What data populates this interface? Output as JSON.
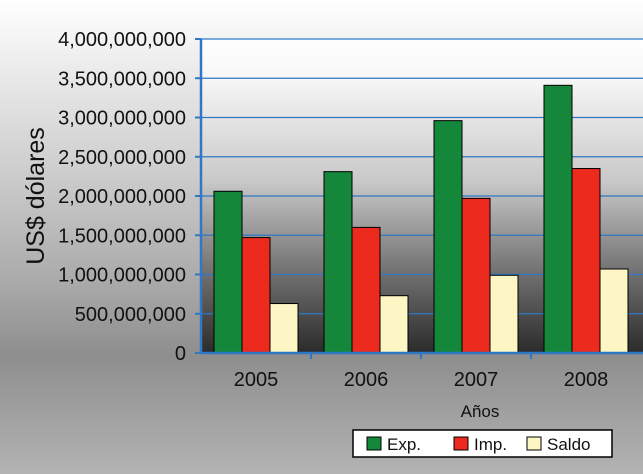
{
  "chart_data": {
    "type": "bar",
    "title": "",
    "xlabel": "Años",
    "ylabel": "US$ dólares",
    "ylim": [
      0,
      4000000000
    ],
    "ytick_step": 500000000,
    "categories": [
      "2005",
      "2006",
      "2007",
      "2008"
    ],
    "series": [
      {
        "name": "Exp.",
        "color": "#14873a",
        "values": [
          2060000000,
          2310000000,
          2960000000,
          3410000000
        ]
      },
      {
        "name": "Imp.",
        "color": "#ed2a1e",
        "values": [
          1470000000,
          1600000000,
          1970000000,
          2350000000
        ]
      },
      {
        "name": "Saldo",
        "color": "#fcf6c4",
        "values": [
          630000000,
          730000000,
          990000000,
          1070000000
        ]
      }
    ],
    "grid": true,
    "legend_position": "bottom-right"
  }
}
